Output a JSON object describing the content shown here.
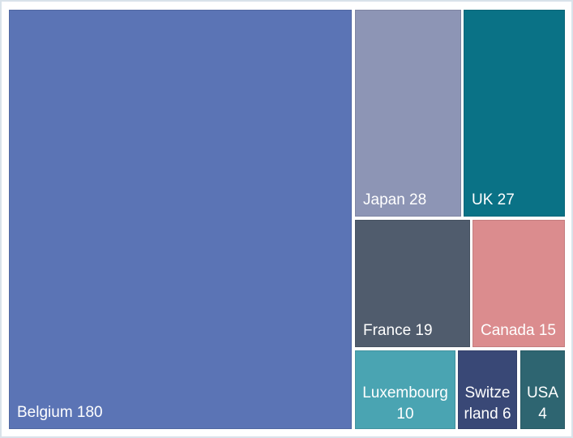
{
  "chart_data": {
    "type": "treemap",
    "title": "",
    "legend": "none",
    "label_color": "#ffffff",
    "background": "#ffffff",
    "frame_border_color": "#d9e2ea",
    "total": 289,
    "series": [
      {
        "name": "Belgium",
        "value": 180,
        "label": "Belgium 180",
        "color": "#5b74b5"
      },
      {
        "name": "Japan",
        "value": 28,
        "label": "Japan 28",
        "color": "#8d95b5"
      },
      {
        "name": "UK",
        "value": 27,
        "label": "UK 27",
        "color": "#0a7286"
      },
      {
        "name": "France",
        "value": 19,
        "label": "France 19",
        "color": "#505c6d"
      },
      {
        "name": "Canada",
        "value": 15,
        "label": "Canada 15",
        "color": "#db8c8e"
      },
      {
        "name": "Luxembourg",
        "value": 10,
        "label": "Luxembourg\n10",
        "color": "#4aa4b2"
      },
      {
        "name": "Switzerland",
        "value": 6,
        "label": "Switze\nrland 6",
        "color": "#394876"
      },
      {
        "name": "USA",
        "value": 4,
        "label": "USA\n4",
        "color": "#2e6571"
      }
    ]
  }
}
